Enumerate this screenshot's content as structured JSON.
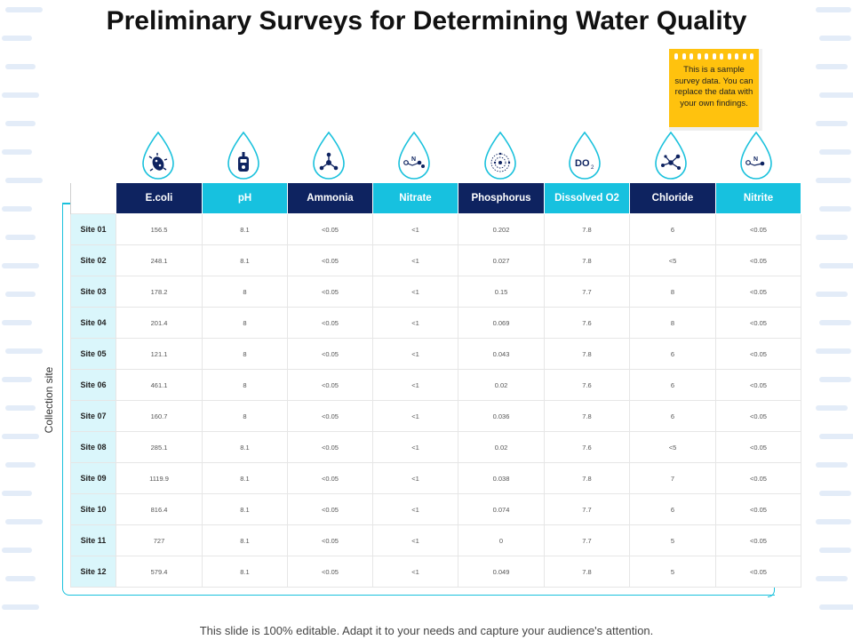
{
  "title": "Preliminary Surveys for Determining Water Quality",
  "note": "This is a sample survey data. You can replace the data with your own findings.",
  "y_axis_label": "Collection site",
  "parameters": [
    {
      "label": "E.coli",
      "icon": "bacteria-icon"
    },
    {
      "label": "pH",
      "icon": "ph-meter-icon"
    },
    {
      "label": "Ammonia",
      "icon": "molecule-icon"
    },
    {
      "label": "Nitrate",
      "icon": "nitrate-molecule-icon"
    },
    {
      "label": "Phosphorus",
      "icon": "phosphorus-atom-icon"
    },
    {
      "label": "Dissolved O2",
      "icon": "dissolved-oxygen-icon",
      "icon_text": "DO",
      "icon_sub": "2"
    },
    {
      "label": "Chloride",
      "icon": "chloride-molecule-icon"
    },
    {
      "label": "Nitrite",
      "icon": "nitrite-molecule-icon"
    }
  ],
  "rows": [
    {
      "site": "Site 01",
      "values": [
        "156.5",
        "8.1",
        "<0.05",
        "<1",
        "0.202",
        "7.8",
        "6",
        "<0.05"
      ]
    },
    {
      "site": "Site 02",
      "values": [
        "248.1",
        "8.1",
        "<0.05",
        "<1",
        "0.027",
        "7.8",
        "<5",
        "<0.05"
      ]
    },
    {
      "site": "Site 03",
      "values": [
        "178.2",
        "8",
        "<0.05",
        "<1",
        "0.15",
        "7.7",
        "8",
        "<0.05"
      ]
    },
    {
      "site": "Site 04",
      "values": [
        "201.4",
        "8",
        "<0.05",
        "<1",
        "0.069",
        "7.6",
        "8",
        "<0.05"
      ]
    },
    {
      "site": "Site 05",
      "values": [
        "121.1",
        "8",
        "<0.05",
        "<1",
        "0.043",
        "7.8",
        "6",
        "<0.05"
      ]
    },
    {
      "site": "Site 06",
      "values": [
        "461.1",
        "8",
        "<0.05",
        "<1",
        "0.02",
        "7.6",
        "6",
        "<0.05"
      ]
    },
    {
      "site": "Site 07",
      "values": [
        "160.7",
        "8",
        "<0.05",
        "<1",
        "0.036",
        "7.8",
        "6",
        "<0.05"
      ]
    },
    {
      "site": "Site 08",
      "values": [
        "285.1",
        "8.1",
        "<0.05",
        "<1",
        "0.02",
        "7.6",
        "<5",
        "<0.05"
      ]
    },
    {
      "site": "Site 09",
      "values": [
        "1119.9",
        "8.1",
        "<0.05",
        "<1",
        "0.038",
        "7.8",
        "7",
        "<0.05"
      ]
    },
    {
      "site": "Site 10",
      "values": [
        "816.4",
        "8.1",
        "<0.05",
        "<1",
        "0.074",
        "7.7",
        "6",
        "<0.05"
      ]
    },
    {
      "site": "Site 11",
      "values": [
        "727",
        "8.1",
        "<0.05",
        "<1",
        "0",
        "7.7",
        "5",
        "<0.05"
      ]
    },
    {
      "site": "Site 12",
      "values": [
        "579.4",
        "8.1",
        "<0.05",
        "<1",
        "0.049",
        "7.8",
        "5",
        "<0.05"
      ]
    }
  ],
  "footer": "This slide is 100% editable. Adapt it to your needs and capture your audience's attention.",
  "colors": {
    "navy": "#0e2360",
    "cyan": "#17c1df",
    "site_bg": "#daf6fb",
    "note": "#ffc20e"
  }
}
